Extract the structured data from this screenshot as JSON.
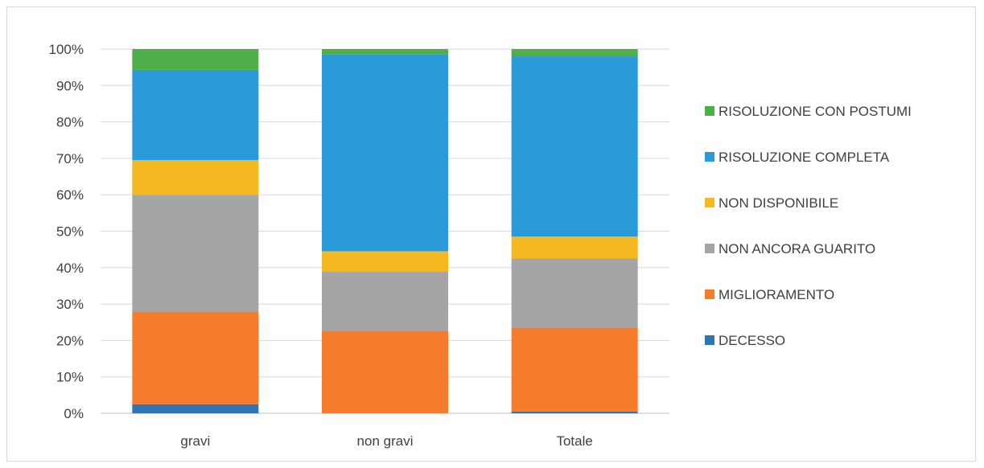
{
  "chart_data": {
    "type": "bar",
    "stacked": true,
    "percent": true,
    "categories": [
      "gravi",
      "non gravi",
      "Totale"
    ],
    "y_ticks": [
      "0%",
      "10%",
      "20%",
      "30%",
      "40%",
      "50%",
      "60%",
      "70%",
      "80%",
      "90%",
      "100%"
    ],
    "ylim": [
      0,
      100
    ],
    "grid": true,
    "legend_position": "right",
    "series": [
      {
        "name": "DECESSO",
        "color": "#2e75b6",
        "values": [
          2.5,
          0,
          0.5
        ]
      },
      {
        "name": "MIGLIORAMENTO",
        "color": "#f47c2c",
        "values": [
          25.3,
          22.7,
          23.0
        ]
      },
      {
        "name": "NON ANCORA GUARITO",
        "color": "#a5a5a5",
        "values": [
          32.2,
          16.3,
          19.0
        ]
      },
      {
        "name": "NON DISPONIBILE",
        "color": "#f5b921",
        "values": [
          9.5,
          5.5,
          6.0
        ]
      },
      {
        "name": "RISOLUZIONE COMPLETA",
        "color": "#2a9bd8",
        "values": [
          24.8,
          54.0,
          49.5
        ]
      },
      {
        "name": "RISOLUZIONE CON POSTUMI",
        "color": "#4caf4a",
        "values": [
          5.7,
          1.5,
          2.0
        ]
      }
    ],
    "legend_labels": [
      "RISOLUZIONE CON POSTUMI",
      "RISOLUZIONE COMPLETA",
      "NON DISPONIBILE",
      "NON ANCORA GUARITO",
      "MIGLIORAMENTO",
      "DECESSO"
    ]
  }
}
